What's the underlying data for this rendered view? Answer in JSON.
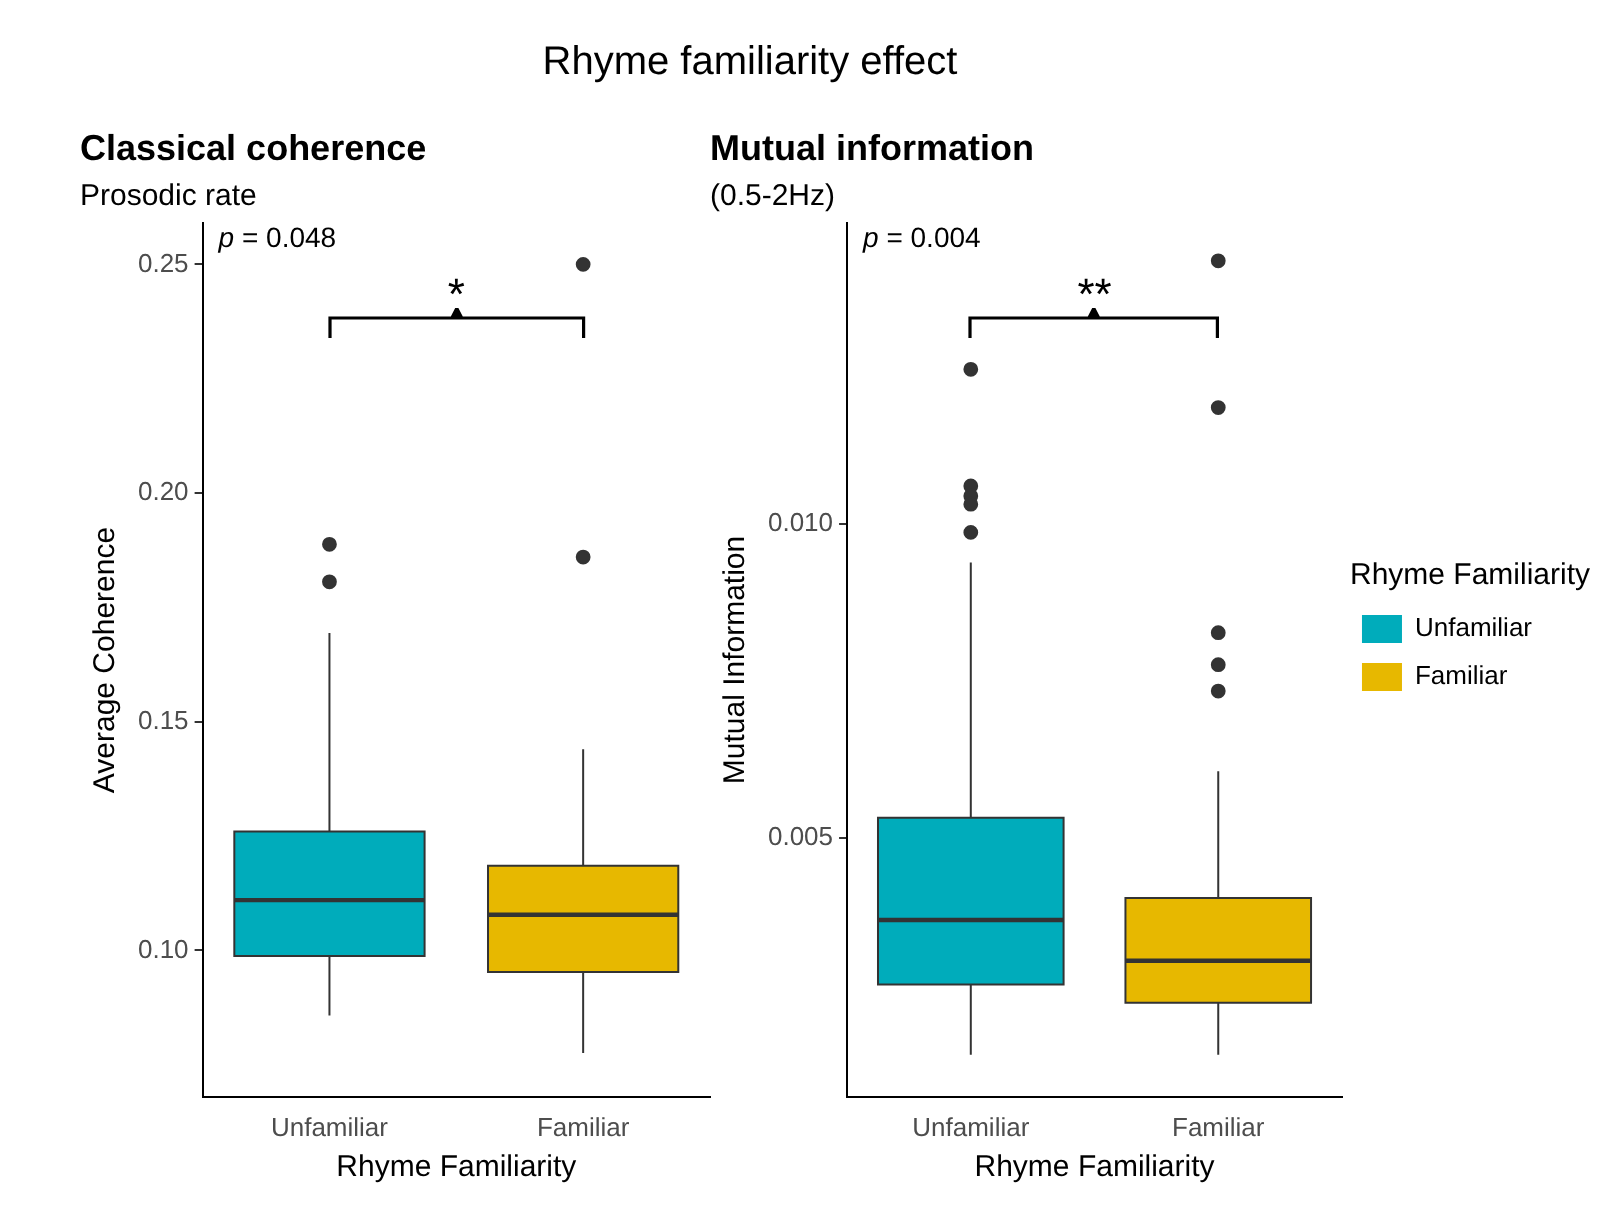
{
  "chart_data": [
    {
      "type": "box",
      "title": "Classical coherence",
      "subtitle": "Prosodic rate",
      "xlabel": "Rhyme Familiarity",
      "ylabel": "Average Coherence",
      "categories": [
        "Unfamiliar",
        "Familiar"
      ],
      "series": [
        {
          "color": "#00acbb",
          "boxes": [
            {
              "low": 0.0858,
              "q1": 0.0988,
              "median": 0.111,
              "q3": 0.126,
              "high": 0.1694,
              "outliers": [
                0.1888,
                0.1806
              ]
            },
            null
          ]
        },
        {
          "color": "#e7b800",
          "boxes": [
            null,
            {
              "low": 0.0776,
              "q1": 0.0953,
              "median": 0.1078,
              "q3": 0.1185,
              "high": 0.144,
              "outliers": [
                0.25,
                0.186
              ]
            }
          ]
        }
      ],
      "ylim": [
        0.068,
        0.259
      ],
      "yticks": [
        {
          "value": 0.1,
          "label": "0.10"
        },
        0.15,
        {
          "value": 0.2,
          "label": "0.20"
        },
        0.25
      ],
      "grid": false,
      "legend": false,
      "annotations": [
        "p = 0.048",
        "*",
        "Rhyme familiarity effect"
      ]
    },
    {
      "type": "box",
      "title": "Mutual information",
      "subtitle": "(0.5-2Hz)",
      "xlabel": "Rhyme Familiarity",
      "ylabel": "Mutual Information",
      "categories": [
        "Unfamiliar",
        "Familiar"
      ],
      "series": [
        {
          "name": "Unfamiliar",
          "color": "#00acbb",
          "boxes": [
            {
              "low": 0.00154,
              "q1": 0.00266,
              "median": 0.00369,
              "q3": 0.00532,
              "high": 0.00939,
              "outliers": [
                0.01247,
                0.01061,
                0.01045,
                0.01032,
                0.00987
              ]
            },
            null
          ]
        },
        {
          "name": "Familiar",
          "color": "#e7b800",
          "boxes": [
            null,
            {
              "low": 0.00154,
              "q1": 0.00237,
              "median": 0.00304,
              "q3": 0.00404,
              "high": 0.00606,
              "outliers": [
                0.0142,
                0.01186,
                0.00827,
                0.00776,
                0.00734
              ]
            }
          ]
        }
      ],
      "ylim": [
        0.00087,
        0.0148
      ],
      "yticks": [
        0.005,
        {
          "value": 0.01,
          "label": "0.010"
        }
      ],
      "grid": false,
      "legend": "right",
      "legend_title": "Rhyme Familiarity",
      "annotations": [
        "p = 0.004",
        "**"
      ]
    }
  ]
}
